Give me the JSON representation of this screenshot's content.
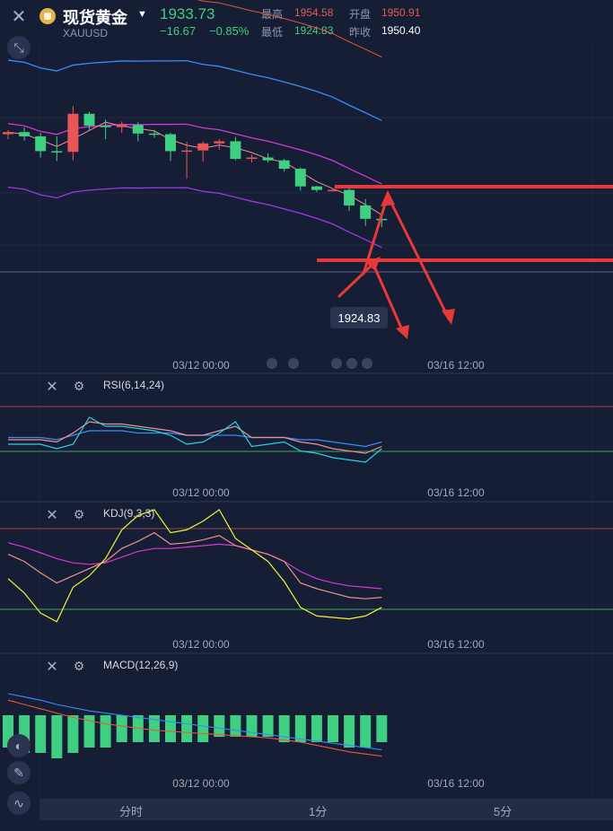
{
  "header": {
    "title": "现货黄金",
    "symbol": "XAUUSD",
    "price": "1933.73",
    "change": "−16.67",
    "change_pct": "−0.85%",
    "high_label": "最高",
    "high": "1954.58",
    "open_label": "开盘",
    "open": "1950.91",
    "low_label": "最低",
    "low": "1924.83",
    "prev_label": "昨收",
    "prev": "1950.40"
  },
  "colors": {
    "up": "#e85757",
    "down": "#3fcf82",
    "background": "#161e35",
    "annotation": "#e8393a"
  },
  "chart_data": [
    {
      "type": "candlestick",
      "panel": "main",
      "low_marker": "1924.83",
      "x_ticks": [
        "03/12 00:00",
        "03/16 12:00"
      ],
      "candles": [
        {
          "open": 1950.6,
          "close": 1950.9,
          "high": 1951.2,
          "low": 1949.9
        },
        {
          "open": 1950.9,
          "close": 1950.3,
          "high": 1951.6,
          "low": 1949.7
        },
        {
          "open": 1950.3,
          "close": 1948.2,
          "high": 1950.8,
          "low": 1947.3
        },
        {
          "open": 1948.2,
          "close": 1948.1,
          "high": 1950.3,
          "low": 1946.8
        },
        {
          "open": 1948.1,
          "close": 1953.5,
          "high": 1954.6,
          "low": 1946.9
        },
        {
          "open": 1953.5,
          "close": 1951.8,
          "high": 1953.8,
          "low": 1951.1
        },
        {
          "open": 1951.8,
          "close": 1951.6,
          "high": 1952.7,
          "low": 1949.9
        },
        {
          "open": 1951.6,
          "close": 1951.9,
          "high": 1952.4,
          "low": 1950.8
        },
        {
          "open": 1951.9,
          "close": 1950.7,
          "high": 1952.3,
          "low": 1949.6
        },
        {
          "open": 1950.7,
          "close": 1950.6,
          "high": 1951.2,
          "low": 1950.1
        },
        {
          "open": 1950.6,
          "close": 1948.2,
          "high": 1950.8,
          "low": 1946.8
        },
        {
          "open": 1948.2,
          "close": 1948.3,
          "high": 1949.5,
          "low": 1944.3
        },
        {
          "open": 1948.3,
          "close": 1949.3,
          "high": 1949.6,
          "low": 1946.7
        },
        {
          "open": 1949.3,
          "close": 1949.6,
          "high": 1949.9,
          "low": 1948.4
        },
        {
          "open": 1949.6,
          "close": 1947.1,
          "high": 1950.2,
          "low": 1946.9
        },
        {
          "open": 1947.1,
          "close": 1947.3,
          "high": 1947.7,
          "low": 1946.6
        },
        {
          "open": 1947.3,
          "close": 1946.9,
          "high": 1947.9,
          "low": 1946.6
        },
        {
          "open": 1946.9,
          "close": 1945.7,
          "high": 1947.1,
          "low": 1945.3
        },
        {
          "open": 1945.7,
          "close": 1943.2,
          "high": 1945.9,
          "low": 1942.6
        },
        {
          "open": 1943.2,
          "close": 1942.7,
          "high": 1943.3,
          "low": 1942.4
        },
        {
          "open": 1942.7,
          "close": 1942.7,
          "high": 1942.9,
          "low": 1942.5
        },
        {
          "open": 1942.7,
          "close": 1940.5,
          "high": 1942.9,
          "low": 1939.7
        },
        {
          "open": 1940.5,
          "close": 1938.6,
          "high": 1941.4,
          "low": 1937.6
        },
        {
          "open": 1938.6,
          "close": 1938.4,
          "high": 1939.3,
          "low": 1937.4
        }
      ]
    },
    {
      "type": "line",
      "panel": "rsi",
      "title": "RSI(6,14,24)",
      "x_ticks": [
        "03/12 00:00",
        "03/16 12:00"
      ],
      "series": [
        {
          "color": "#3a8cf7",
          "values": [
            51,
            51,
            51,
            50,
            52,
            54,
            54,
            54,
            53,
            53,
            53,
            52,
            52,
            52,
            52,
            51,
            51,
            51,
            50,
            50,
            49,
            48,
            47,
            49
          ]
        },
        {
          "color": "#f08f8f",
          "values": [
            50,
            50,
            50,
            49,
            53,
            58,
            57,
            57,
            56,
            55,
            54,
            52,
            52,
            54,
            56,
            51,
            51,
            51,
            49,
            48,
            46,
            45,
            44,
            47
          ]
        },
        {
          "color": "#29d2df",
          "values": [
            48,
            48,
            48,
            46,
            48,
            60,
            56,
            56,
            55,
            54,
            52,
            48,
            49,
            53,
            58,
            47,
            48,
            49,
            45,
            44,
            42,
            41,
            40,
            46
          ]
        }
      ]
    },
    {
      "type": "line",
      "panel": "kdj",
      "title": "KDJ(9,3,3)",
      "x_ticks": [
        "03/12 00:00",
        "03/16 12:00"
      ],
      "series": [
        {
          "color": "#d13ad1",
          "values": [
            77,
            74,
            70,
            66,
            63,
            62,
            63,
            67,
            71,
            73,
            73,
            74,
            75,
            76,
            75,
            72,
            69,
            64,
            57,
            52,
            49,
            47,
            46,
            45
          ]
        },
        {
          "color": "#f08f8f",
          "values": [
            69,
            64,
            56,
            49,
            54,
            59,
            64,
            73,
            78,
            84,
            76,
            77,
            79,
            82,
            75,
            72,
            69,
            64,
            49,
            45,
            42,
            39,
            38,
            39
          ]
        },
        {
          "color": "#f1f13a",
          "values": [
            52,
            42,
            28,
            22,
            46,
            54,
            66,
            86,
            96,
            100,
            84,
            86,
            92,
            100,
            80,
            72,
            64,
            50,
            32,
            26,
            25,
            24,
            26,
            32
          ]
        }
      ]
    },
    {
      "type": "bar+line",
      "panel": "macd",
      "title": "MACD(12,26,9)",
      "x_ticks": [
        "03/12 00:00",
        "03/16 12:00"
      ],
      "histogram": [
        -0.6,
        -0.7,
        -0.7,
        -0.8,
        -0.7,
        -0.6,
        -0.6,
        -0.5,
        -0.5,
        -0.5,
        -0.5,
        -0.5,
        -0.5,
        -0.4,
        -0.4,
        -0.4,
        -0.4,
        -0.5,
        -0.5,
        -0.5,
        -0.5,
        -0.6,
        -0.6,
        -0.5
      ],
      "series": [
        {
          "color": "#3a8cf7",
          "values": [
            2.0,
            1.7,
            1.4,
            1.0,
            0.7,
            0.4,
            0.2,
            0.0,
            -0.2,
            -0.4,
            -0.6,
            -0.8,
            -1.0,
            -1.2,
            -1.4,
            -1.6,
            -1.8,
            -2.0,
            -2.2,
            -2.4,
            -2.6,
            -2.8,
            -3.0,
            -3.2
          ]
        },
        {
          "color": "#e8573e",
          "values": [
            1.4,
            1.0,
            0.6,
            0.2,
            -0.2,
            -0.5,
            -0.8,
            -1.0,
            -1.2,
            -1.4,
            -1.5,
            -1.6,
            -1.7,
            -1.8,
            -1.9,
            -2.0,
            -2.1,
            -2.3,
            -2.5,
            -2.8,
            -3.1,
            -3.4,
            -3.6,
            -3.8
          ]
        }
      ]
    }
  ],
  "panels": {
    "rsi": {
      "title": "RSI(6,14,24)"
    },
    "kdj": {
      "title": "KDJ(9,3,3)"
    },
    "macd": {
      "title": "MACD(12,26,9)"
    }
  },
  "tabs": [
    "分时",
    "1分",
    "5分"
  ]
}
